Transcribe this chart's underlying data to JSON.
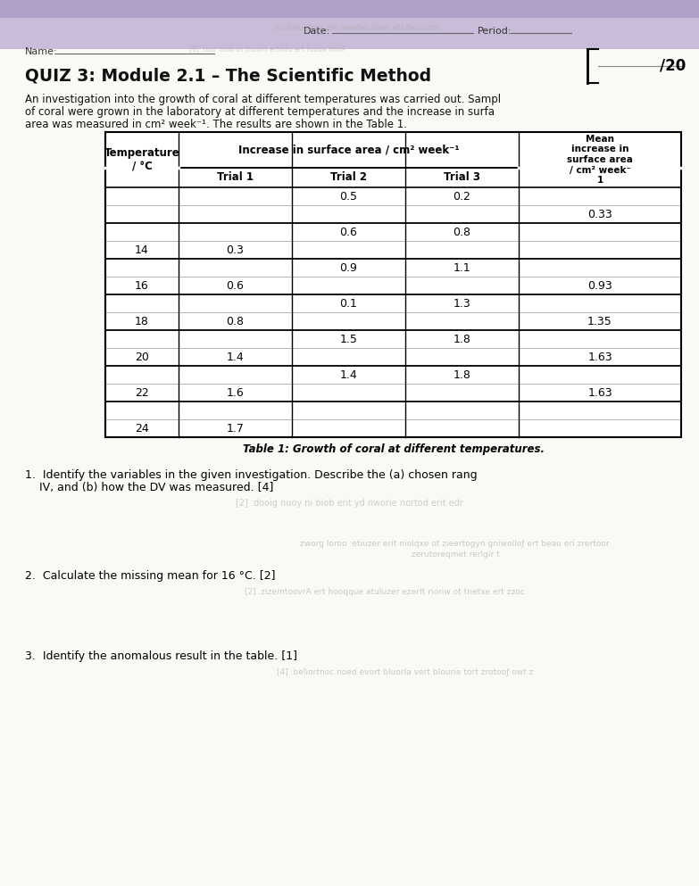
{
  "title": "QUIZ 3: Module 2.1 – The Scientific Method",
  "header_date": "Date: _______________",
  "header_period": "Period: ____",
  "header_name": "Name: _______________",
  "score_label": "/20",
  "intro_text_lines": [
    "An investigation into the growth of coral at different temperatures was carried out. Sampl",
    "of coral were grown in the laboratory at different temperatures and the increase in surfa",
    "area was measured in cm² week⁻¹. The results are shown in the Table 1."
  ],
  "table_caption": "Table 1: Growth of coral at different temperatures.",
  "temperatures": [
    "",
    "14",
    "16",
    "18",
    "20",
    "22",
    "24"
  ],
  "trial1": [
    "",
    "0.3",
    "0.6",
    "0.8",
    "1.4",
    "1.6",
    "1.7"
  ],
  "trial2": [
    "0.5",
    "0.6",
    "0.9",
    "0.1",
    "1.5",
    "1.4",
    ""
  ],
  "trial3": [
    "0.2",
    "0.8",
    "1.1",
    "1.3",
    "1.8",
    "1.8",
    ""
  ],
  "mean": [
    "0.33",
    "",
    "0.93",
    "1.35",
    "1.63",
    "1.63",
    ""
  ],
  "q1": "1.  Identify the variables in the given investigation. Describe the (a) chosen rang",
  "q1b": "    IV, and (b) how the DV was measured. [4]",
  "q1_rev": "[2] .dooig nuoy ni biob ent yd nworie nortod erit edr",
  "q2_rev1": "zworg loroo :etiuzer erit niolqxe ot zieertogyn gniwolloƒ ert beau eri zrertoor",
  "q2_rev2": ".zerutoreqmet rerlgir t",
  "q2": "2.  Calculate the missing mean for 16 °C. [2]",
  "q2_rev3": "[2] .zizemtoovrA ert hooqque atuluzer ezerlt rioriw ot tnetxe ert zzoc",
  "q3": "3.  Identify the anomalous result in the table. [1]",
  "q3_rev": "[4] .beliortnoс noed evort bluorla vert blourie tort zrotooƒ owt z",
  "paper_bg": "#f5f4ef",
  "purple_bg": "#c8bcd8",
  "purple_dark": "#b0a0c8",
  "line_color": "#cccccc"
}
